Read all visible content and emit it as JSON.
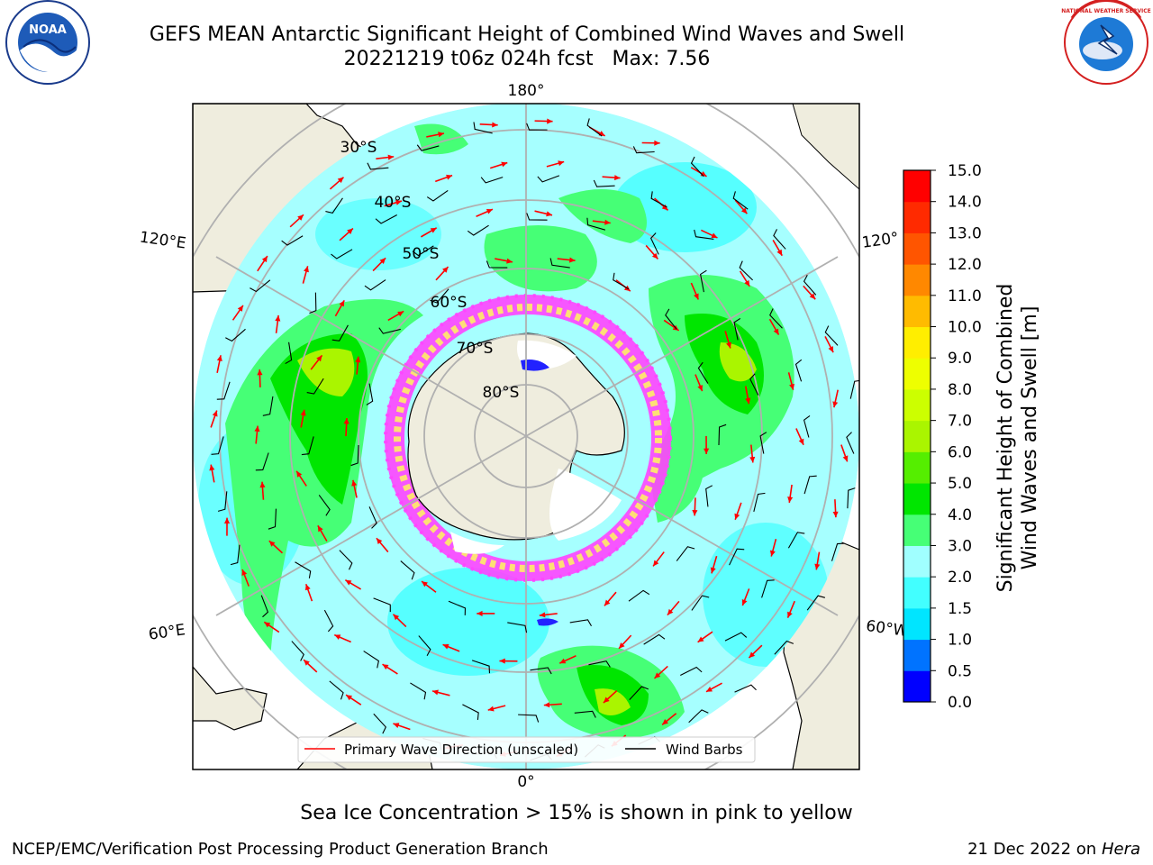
{
  "header": {
    "title_line1": "GEFS MEAN Antarctic Significant Height of Combined Wind Waves and Swell",
    "title_line2": "20221219 t06z 024h fcst   Max: 7.56"
  },
  "logos": {
    "left": {
      "icon": "noaa-logo",
      "text": "NOAA"
    },
    "right": {
      "icon": "nws-logo",
      "text": "NATIONAL WEATHER SERVICE"
    }
  },
  "map": {
    "longitude_labels": [
      "180°",
      "120°E",
      "120°",
      "60°E",
      "60°W",
      "0°"
    ],
    "latitude_labels": [
      "30°S",
      "40°S",
      "50°S",
      "60°S",
      "70°S",
      "80°S"
    ]
  },
  "legend": {
    "entries": [
      {
        "label": "Primary Wave Direction (unscaled)",
        "color": "#ff0000"
      },
      {
        "label": "Wind Barbs",
        "color": "#000000"
      }
    ]
  },
  "colorbar": {
    "label_line1": "Significant Height of Combined",
    "label_line2": "Wind Waves and Swell [m]",
    "ticks": [
      "0.0",
      "0.5",
      "1.0",
      "1.5",
      "2.0",
      "3.0",
      "4.0",
      "5.0",
      "6.0",
      "7.0",
      "8.0",
      "9.0",
      "10.0",
      "11.0",
      "12.0",
      "13.0",
      "14.0",
      "15.0"
    ],
    "colors": [
      "#0000ff",
      "#0073ff",
      "#00e5ff",
      "#42ffff",
      "#a0ffff",
      "#46ff76",
      "#00e600",
      "#55ee00",
      "#aaf500",
      "#ccff00",
      "#eeff00",
      "#ffee00",
      "#ffbb00",
      "#ff8800",
      "#ff5500",
      "#ff2a00",
      "#ff0000"
    ]
  },
  "footer": {
    "note": "Sea Ice Concentration > 15% is shown in pink to yellow",
    "credit": "NCEP/EMC/Verification Post Processing Product Generation Branch",
    "date": "21 Dec 2022 on",
    "machine": "Hera"
  },
  "colors": {
    "land": "#efedde",
    "ocean_background": "#a6ffff",
    "ocean_light": "#42ffff",
    "wave_green": "#46ff76",
    "wave_deep_green": "#00e600",
    "sea_ice_pink": "#ff44ff",
    "sea_ice_yellow": "#ffee66",
    "wave_arrow": "#ff0000",
    "wind_barb": "#000000",
    "grid": "#b0b0b0"
  }
}
